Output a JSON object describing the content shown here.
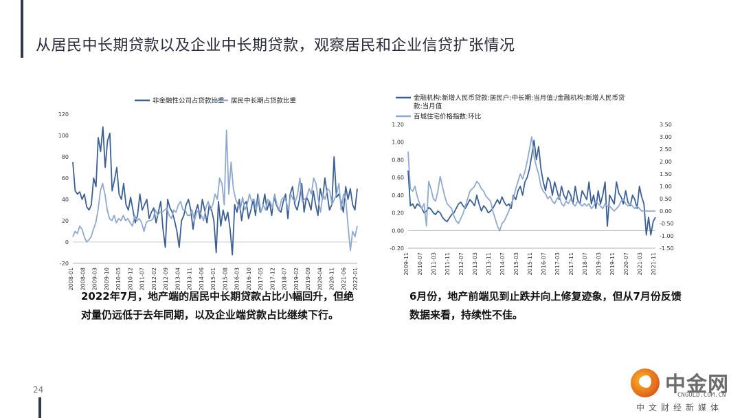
{
  "page": {
    "title": "从居民中长期贷款以及企业中长期贷款，观察居民和企业信贷扩张情况",
    "page_number": "24",
    "caption_left": "2022年7月，地产端的居民中长期贷款占比小幅回升，但绝对量仍远低于去年同期，以及企业端贷款占比继续下行。",
    "caption_right": "6月份，地产前端见到止跌并向上修复迹象，但从7月份反馈数据来看，持续性不佳。"
  },
  "logo": {
    "name": "中金网",
    "url": "CNGOLD.COM.CN",
    "tagline": "中文财经新媒体"
  },
  "colors": {
    "dark_series": "#3b5f94",
    "light_series": "#8fa9cf",
    "title_bar": "#2f3a4f"
  },
  "chart_data": [
    {
      "type": "line",
      "title": "",
      "ylim": [
        -20,
        120
      ],
      "yticks": [
        "120",
        "100",
        "80",
        "60",
        "40",
        "20",
        "0",
        "-20"
      ],
      "xticks": [
        "2008-01",
        "2008-08",
        "2009-03",
        "2009-10",
        "2010-05",
        "2010-12",
        "2011-07",
        "2012-02",
        "2012-09",
        "2013-04",
        "2013-11",
        "2014-06",
        "2015-01",
        "2015-08",
        "2016-03",
        "2016-10",
        "2017-05",
        "2017-12",
        "2018-07",
        "2019-02",
        "2019-09",
        "2020-04",
        "2020-11",
        "2021-06",
        "2022-01"
      ],
      "x_start": "2008-01",
      "series": [
        {
          "name": "非金融性公司占贷款比重",
          "color": "#3b5f94",
          "values": [
            75,
            48,
            45,
            47,
            40,
            45,
            33,
            30,
            35,
            60,
            52,
            98,
            85,
            108,
            70,
            95,
            102,
            48,
            58,
            70,
            45,
            40,
            55,
            35,
            30,
            42,
            30,
            18,
            25,
            45,
            30,
            35,
            40,
            22,
            28,
            32,
            18,
            28,
            38,
            12,
            -5,
            40,
            32,
            28,
            20,
            10,
            -5,
            20,
            25,
            35,
            40,
            30,
            12,
            28,
            35,
            22,
            40,
            30,
            18,
            35,
            30,
            20,
            -10,
            38,
            15,
            30,
            20,
            28,
            12,
            -12,
            35,
            28,
            40,
            20,
            35,
            38,
            22,
            30,
            40,
            25,
            45,
            28,
            32,
            45,
            30,
            38,
            25,
            42,
            35,
            30,
            28,
            38,
            45,
            22,
            45,
            52,
            35,
            30,
            40,
            55,
            28,
            42,
            38,
            30,
            48,
            35,
            25,
            50,
            40,
            60,
            45,
            30,
            35,
            80,
            42,
            45,
            38,
            28,
            52,
            40,
            50,
            35,
            30,
            50
          ]
        },
        {
          "name": "居民中长期占贷款比重",
          "color": "#8fa9cf",
          "values": [
            5,
            10,
            8,
            15,
            12,
            5,
            0,
            2,
            5,
            12,
            18,
            30,
            48,
            55,
            45,
            30,
            22,
            20,
            25,
            18,
            22,
            20,
            25,
            20,
            22,
            18,
            15,
            25,
            20,
            22,
            18,
            10,
            18,
            20,
            20,
            22,
            30,
            25,
            28,
            28,
            30,
            32,
            25,
            22,
            30,
            28,
            35,
            38,
            30,
            30,
            25,
            25,
            30,
            20,
            28,
            30,
            25,
            20,
            32,
            38,
            30,
            35,
            45,
            40,
            60,
            55,
            35,
            105,
            45,
            75,
            50,
            40,
            35,
            30,
            42,
            30,
            35,
            45,
            38,
            40,
            30,
            42,
            28,
            35,
            30,
            40,
            38,
            32,
            45,
            35,
            30,
            40,
            42,
            38,
            30,
            45,
            40,
            38,
            45,
            60,
            38,
            40,
            42,
            50,
            45,
            60,
            55,
            40,
            28,
            45,
            40,
            50,
            48,
            35,
            40,
            45,
            55,
            30,
            45,
            40,
            15,
            -8,
            10,
            5,
            15
          ]
        }
      ]
    },
    {
      "type": "line",
      "title": "",
      "ylim": [
        -0.2,
        1.2
      ],
      "y2lim": [
        -1.5,
        3.5
      ],
      "yticks": [
        "1.20",
        "1.00",
        "0.80",
        "0.60",
        "0.40",
        "0.20",
        "0.00",
        "-0.20"
      ],
      "y2ticks": [
        "3.50",
        "3.00",
        "2.50",
        "2.00",
        "1.50",
        "1.00",
        "0.50",
        "0.00",
        "-0.50",
        "-1.00",
        "-1.50"
      ],
      "xticks": [
        "2009-11",
        "2010-07",
        "2011-03",
        "2011-11",
        "2012-07",
        "2013-03",
        "2013-11",
        "2014-07",
        "2015-03",
        "2015-11",
        "2016-07",
        "2017-03",
        "2017-11",
        "2018-07",
        "2019-03",
        "2019-11",
        "2020-07",
        "2021-03",
        "2021-11"
      ],
      "x_start": "2009-11",
      "series": [
        {
          "name": "金融机构:新增人民币贷款:居民户:中长期:当月值:/金融机构:新增人民币贷款:当月值",
          "color": "#3b5f94",
          "axis": "left",
          "values": [
            0.68,
            0.28,
            0.3,
            0.25,
            0.3,
            0.28,
            0.25,
            0.2,
            0.22,
            0.26,
            0.24,
            0.2,
            0.18,
            0.22,
            0.2,
            0.15,
            0.12,
            0.1,
            0.14,
            0.18,
            0.2,
            0.25,
            0.3,
            0.32,
            0.28,
            0.25,
            0.3,
            0.35,
            0.32,
            0.28,
            0.4,
            0.3,
            0.22,
            0.28,
            0.25,
            0.2,
            0.22,
            0.25,
            0.3,
            0.35,
            0.3,
            0.38,
            0.32,
            0.28,
            0.3,
            0.25,
            0.4,
            0.35,
            0.45,
            0.5,
            0.4,
            0.55,
            0.6,
            0.7,
            0.85,
            1.02,
            0.8,
            0.95,
            0.7,
            0.55,
            0.45,
            0.6,
            0.55,
            0.4,
            0.55,
            0.45,
            0.35,
            0.5,
            0.4,
            0.35,
            0.45,
            0.4,
            0.3,
            0.5,
            0.35,
            0.3,
            0.45,
            0.4,
            0.35,
            0.55,
            0.3,
            0.4,
            0.25,
            0.45,
            0.3,
            0.4,
            0.55,
            0.05,
            0.4,
            0.35,
            0.3,
            0.55,
            0.42,
            0.38,
            0.3,
            0.45,
            0.32,
            0.28,
            0.4,
            0.35,
            0.25,
            0.5,
            0.38,
            0.3,
            -0.05,
            0.15,
            -0.05,
            0.1,
            0.15
          ]
        },
        {
          "name": "百城住宅价格指数:环比",
          "color": "#8fa9cf",
          "axis": "right",
          "values": [
            2.4,
            0.9,
            0.8,
            1.0,
            0.6,
            0.3,
            0.1,
            0.3,
            -0.6,
            1.2,
            0.9,
            0.5,
            0.4,
            0.8,
            1.4,
            1.0,
            0.6,
            0.3,
            0.2,
            0.1,
            -0.2,
            -0.4,
            -0.5,
            -0.3,
            -0.1,
            0.2,
            0.5,
            0.8,
            0.9,
            1.0,
            1.2,
            1.1,
            0.9,
            0.8,
            0.6,
            0.5,
            0.4,
            0.0,
            -0.3,
            -0.6,
            -0.8,
            -0.5,
            -0.4,
            -0.2,
            0.0,
            0.3,
            0.5,
            0.9,
            1.2,
            1.5,
            1.3,
            1.6,
            2.0,
            2.5,
            3.0,
            2.2,
            1.8,
            1.5,
            1.0,
            0.8,
            0.7,
            0.5,
            0.6,
            0.4,
            0.3,
            0.5,
            0.6,
            0.3,
            0.2,
            0.4,
            0.3,
            0.5,
            0.3,
            0.2,
            0.4,
            0.3,
            0.2,
            0.3,
            0.2,
            0.3,
            0.1,
            0.2,
            0.4,
            0.3,
            0.2,
            0.1,
            0.3,
            0.2,
            0.2,
            0.1,
            0.0,
            0.1,
            0.2,
            0.4,
            0.5,
            0.3,
            0.2,
            0.3,
            0.2,
            0.1,
            0.2,
            0.1,
            0.0,
            0.0,
            0.0,
            0.0,
            0.0,
            0.0,
            0.0
          ]
        }
      ]
    }
  ]
}
